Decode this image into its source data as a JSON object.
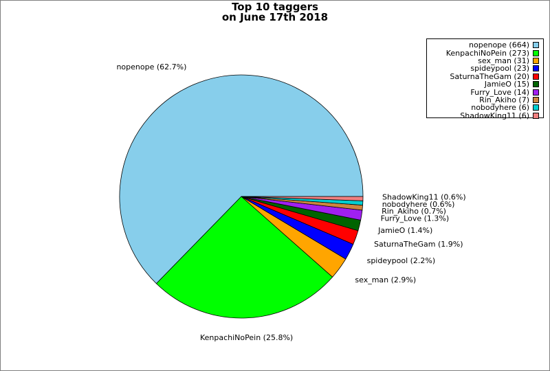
{
  "chart_data": {
    "type": "pie",
    "title": "Top 10 taggers\non June 17th 2018",
    "title_lines": [
      "Top 10 taggers",
      "on June 17th 2018"
    ],
    "legend_placement": "top-right",
    "slices": [
      {
        "label": "nopenope",
        "value": 664,
        "percent_label": "nopenope (62.7%)",
        "legend_label": "nopenope (664)",
        "color": "#87ceeb"
      },
      {
        "label": "KenpachiNoPein",
        "value": 273,
        "percent_label": "KenpachiNoPein (25.8%)",
        "legend_label": "KenpachiNoPein (273)",
        "color": "#00ff00"
      },
      {
        "label": "sex_man",
        "value": 31,
        "percent_label": "sex_man (2.9%)",
        "legend_label": "sex_man (31)",
        "color": "#ffa500"
      },
      {
        "label": "spideypool",
        "value": 23,
        "percent_label": "spideypool (2.2%)",
        "legend_label": "spideypool (23)",
        "color": "#0000ff"
      },
      {
        "label": "SaturnaTheGam",
        "value": 20,
        "percent_label": "SaturnaTheGam (1.9%)",
        "legend_label": "SaturnaTheGam (20)",
        "color": "#ff0000"
      },
      {
        "label": "JamieO",
        "value": 15,
        "percent_label": "JamieO (1.4%)",
        "legend_label": "JamieO (15)",
        "color": "#006400"
      },
      {
        "label": "Furry_Love",
        "value": 14,
        "percent_label": "Furry_Love (1.3%)",
        "legend_label": "Furry_Love (14)",
        "color": "#a020f0"
      },
      {
        "label": "Rin_Akiho",
        "value": 7,
        "percent_label": "Rin_Akiho (0.7%)",
        "legend_label": "Rin_Akiho (7)",
        "color": "#cd853f"
      },
      {
        "label": "nobodyhere",
        "value": 6,
        "percent_label": "nobodyhere (0.6%)",
        "legend_label": "nobodyhere (6)",
        "color": "#00ced1"
      },
      {
        "label": "ShadowKing11",
        "value": 6,
        "percent_label": "ShadowKing11 (0.6%)",
        "legend_label": "ShadowKing11 (6)",
        "color": "#f08080"
      }
    ]
  }
}
